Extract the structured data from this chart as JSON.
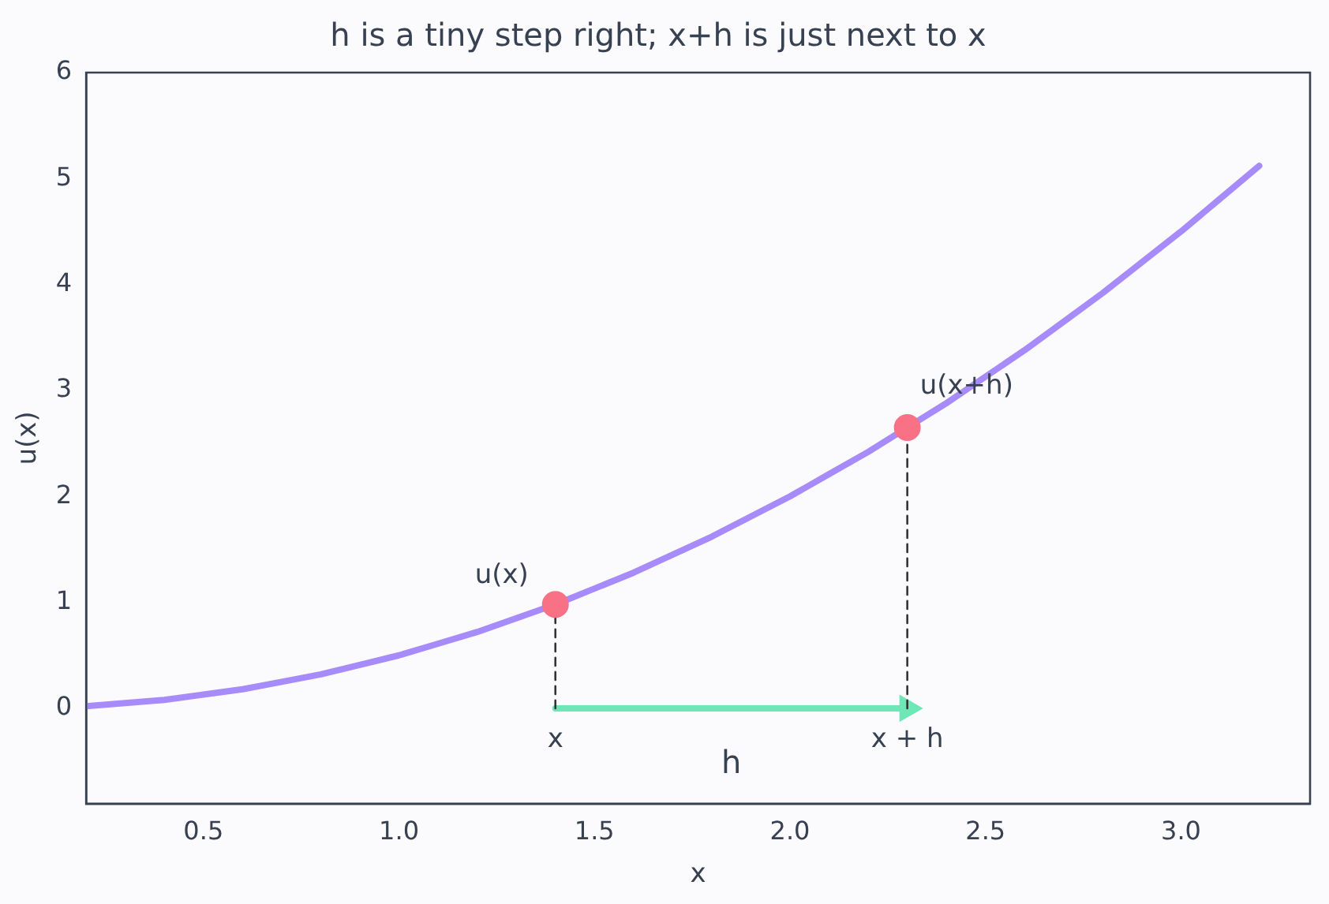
{
  "chart_data": {
    "type": "line",
    "title": "h is a tiny step right; x+h is just next to x",
    "xlabel": "x",
    "ylabel": "u(x)",
    "xlim": [
      0.2,
      3.33
    ],
    "xticks": [
      {
        "value": 0.5,
        "label": "0.5"
      },
      {
        "value": 1,
        "label": "1.0"
      },
      {
        "value": 1.5,
        "label": "1.5"
      },
      {
        "value": 2,
        "label": "2.0"
      },
      {
        "value": 2.5,
        "label": "2.5"
      },
      {
        "value": 3,
        "label": "3.0"
      }
    ],
    "ylim": [
      -0.9,
      6
    ],
    "yticks": [
      0,
      1,
      2,
      3,
      4,
      5,
      6
    ],
    "grid": false,
    "legend": false,
    "series": [
      {
        "type": "line",
        "color": "#a78bfa",
        "marker": "none",
        "line_style": "solid",
        "x": [
          0.2,
          0.3,
          0.4,
          0.5,
          0.6,
          0.7,
          0.8,
          0.9,
          1.0,
          1.1,
          1.2,
          1.3,
          1.4,
          1.5,
          1.6,
          1.7,
          1.8,
          1.9,
          2.0,
          2.1,
          2.2,
          2.3,
          2.4,
          2.5,
          2.6,
          2.7,
          2.8,
          2.9,
          3.0,
          3.1,
          3.2
        ],
        "values": [
          0.02,
          0.05,
          0.08,
          0.13,
          0.18,
          0.25,
          0.32,
          0.41,
          0.5,
          0.61,
          0.72,
          0.85,
          0.98,
          1.13,
          1.28,
          1.45,
          1.62,
          1.81,
          2.0,
          2.21,
          2.42,
          2.65,
          2.88,
          3.13,
          3.38,
          3.65,
          3.92,
          4.21,
          4.5,
          4.81,
          5.12
        ]
      },
      {
        "type": "line",
        "color": "#333333",
        "marker": "none",
        "line_style": "dashed",
        "x": [
          1.4,
          1.4
        ],
        "values": [
          0,
          0.98
        ]
      },
      {
        "type": "line",
        "color": "#333333",
        "marker": "none",
        "line_style": "dashed",
        "x": [
          2.3,
          2.3
        ],
        "values": [
          0,
          2.65
        ]
      },
      {
        "type": "line",
        "color": "#6ee7b7",
        "marker": "triangle",
        "line_style": "solid",
        "x": [
          1.4,
          2.3
        ],
        "values": [
          0,
          0
        ]
      },
      {
        "type": "scatter",
        "color": "#f87185",
        "marker": "circle",
        "x": [
          1.4,
          2.3
        ],
        "values": [
          0.98,
          2.65
        ]
      }
    ],
    "annotations": [
      {
        "text": "u(x)",
        "x": 1.4,
        "y": 0.98
      },
      {
        "text": "u(x+h)",
        "x": 2.3,
        "y": 2.65
      },
      {
        "text": "x",
        "x": 1.4,
        "y": 0
      },
      {
        "text": "x + h",
        "x": 2.3,
        "y": 0
      },
      {
        "text": "h",
        "x": 1.85,
        "y": 0
      }
    ]
  }
}
